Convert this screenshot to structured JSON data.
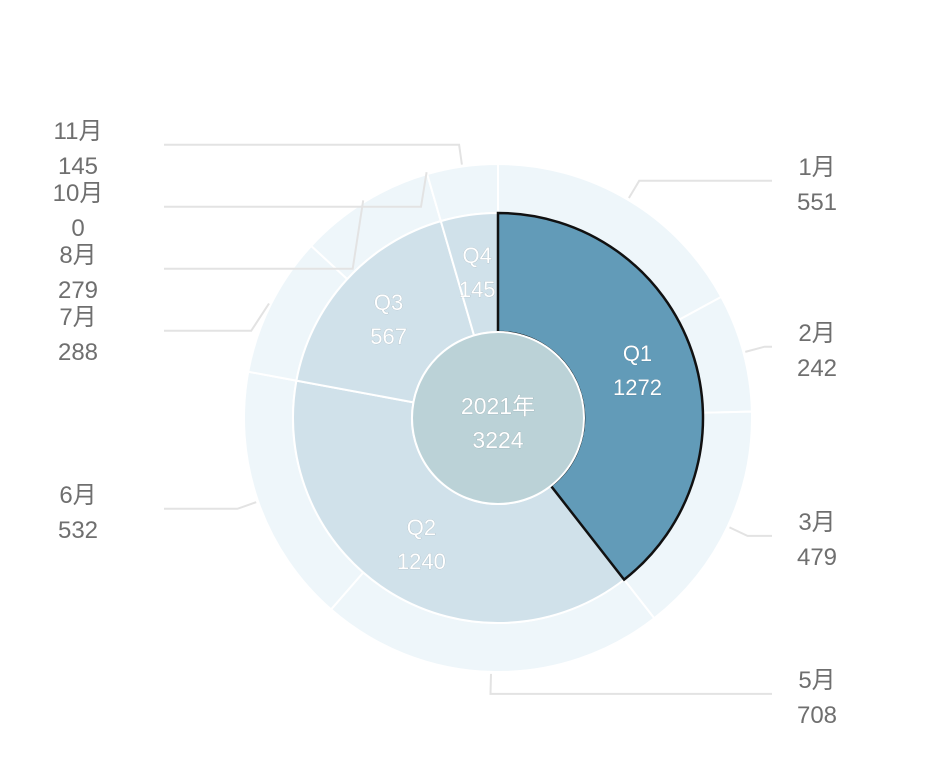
{
  "chart_data": {
    "type": "pie",
    "center": {
      "name": "2021年",
      "value": 3224,
      "color": "#bbd2d7"
    },
    "inner_ring": {
      "start_angle_deg": 0,
      "direction": "clockwise",
      "slices": [
        {
          "name": "Q1",
          "value": 1272,
          "color": "#629bb8",
          "highlighted": true
        },
        {
          "name": "Q2",
          "value": 1240,
          "color": "#d0e1ea"
        },
        {
          "name": "Q3",
          "value": 567,
          "color": "#d0e1ea"
        },
        {
          "name": "Q4",
          "value": 145,
          "color": "#d0e1ea"
        }
      ]
    },
    "outer_ring": {
      "start_angle_deg": 0,
      "direction": "clockwise",
      "color": "#eef6fa",
      "slices": [
        {
          "name": "1月",
          "value": 551,
          "label_side": "right"
        },
        {
          "name": "2月",
          "value": 242,
          "label_side": "right"
        },
        {
          "name": "3月",
          "value": 479,
          "label_side": "right"
        },
        {
          "name": "5月",
          "value": 708,
          "label_side": "right"
        },
        {
          "name": "6月",
          "value": 532,
          "label_side": "left"
        },
        {
          "name": "7月",
          "value": 288,
          "label_side": "left"
        },
        {
          "name": "8月",
          "value": 279,
          "label_side": "left"
        },
        {
          "name": "10月",
          "value": 0,
          "label_side": "left"
        },
        {
          "name": "11月",
          "value": 145,
          "label_side": "left"
        }
      ]
    },
    "colors": {
      "label_text": "#6f6f6f",
      "inner_label_text": "#ffffff",
      "leader_line": "#e3e3e3",
      "slice_border": "#ffffff",
      "highlight_border": "#111111"
    }
  }
}
